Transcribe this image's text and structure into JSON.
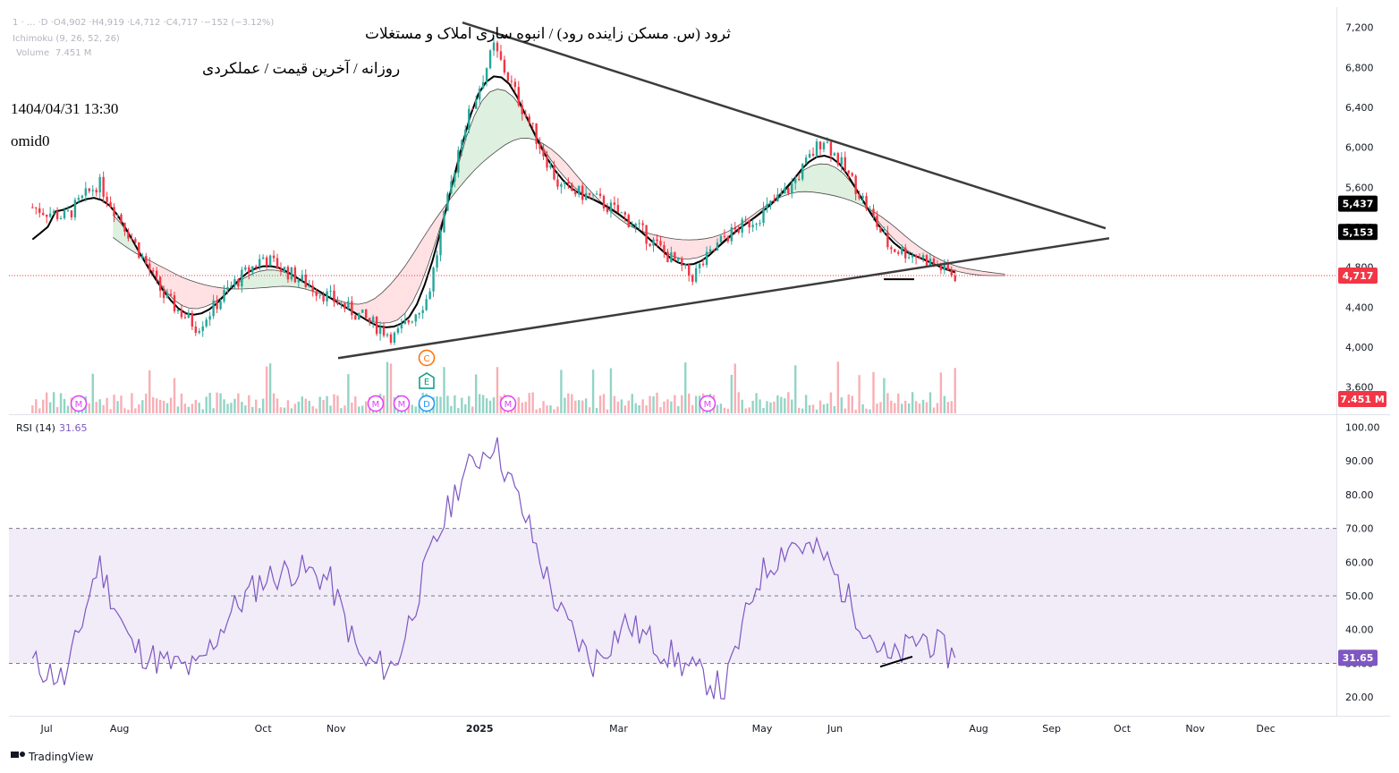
{
  "header": {
    "ohlc_line": "1 · ... ·D ·O4,902 ·H4,919 ·L4,712 ·C4,717 ·−152 (−3.12%)",
    "ichimoku_label": "Ichimoku (9, 26, 52, 26)",
    "volume_label": "Volume",
    "volume_value": "7.451 M",
    "title_lines": [
      "ثرود (س. مسکن زاینده رود) / انبوه سازی املاک و مستغلات",
      "روزانه / آخرین قیمت / عملکردی",
      "1404/04/31 13:30",
      "omid0"
    ]
  },
  "price_badges": [
    {
      "label": "5,437",
      "value": 5437,
      "color": "#000000"
    },
    {
      "label": "5,153",
      "value": 5153,
      "color": "#000000"
    },
    {
      "label": "4,717",
      "value": 4717,
      "color": "#f23645"
    }
  ],
  "volume_badge": {
    "label": "7.451 M",
    "color": "#f23645"
  },
  "rsi": {
    "label": "RSI (14)",
    "value": "31.65",
    "color": "#7e57c2"
  },
  "x_axis": {
    "ticks": [
      "Jul",
      "Aug",
      "Oct",
      "Nov",
      "2025",
      "Mar",
      "May",
      "Jun",
      "Aug",
      "Sep",
      "Oct",
      "Nov",
      "Dec"
    ]
  },
  "footer": {
    "brand": "TradingView"
  },
  "events": [
    {
      "letter": "M",
      "color": "#e040fb"
    },
    {
      "letter": "M",
      "color": "#e040fb"
    },
    {
      "letter": "M",
      "color": "#e040fb"
    },
    {
      "letter": "D",
      "color": "#2196f3"
    },
    {
      "letter": "E",
      "color": "#089981"
    },
    {
      "letter": "C",
      "color": "#ff6d00"
    },
    {
      "letter": "M",
      "color": "#e040fb"
    },
    {
      "letter": "M",
      "color": "#e040fb"
    }
  ],
  "colors": {
    "up": "#26a69a",
    "down": "#f23645",
    "cloud_bull": "#c8e6c9",
    "cloud_bear": "#ffcdd2",
    "rsi_band": "#ede7f6",
    "rsi_line": "#7e57c2"
  },
  "chart_data": [
    {
      "type": "candlestick",
      "title": "ثرود (س. مسکن زاینده رود) / انبوه سازی املاک و مستغلات",
      "x": [
        "2024-06-25",
        "2024-07-09",
        "2024-07-23",
        "2024-08-06",
        "2024-08-20",
        "2024-09-03",
        "2024-09-17",
        "2024-10-01",
        "2024-10-15",
        "2024-10-29",
        "2024-11-12",
        "2024-11-26",
        "2024-12-10",
        "2024-12-24",
        "2025-01-07",
        "2025-01-21",
        "2025-02-04",
        "2025-02-18",
        "2025-03-04",
        "2025-03-18",
        "2025-04-01",
        "2025-04-15",
        "2025-04-29",
        "2025-05-13",
        "2025-05-27",
        "2025-06-10",
        "2025-06-24",
        "2025-07-08",
        "2025-07-22"
      ],
      "close": [
        5400,
        5300,
        5650,
        5100,
        4500,
        4200,
        4600,
        4900,
        4700,
        4500,
        4300,
        4100,
        4500,
        6100,
        7000,
        6300,
        5600,
        5500,
        5300,
        5000,
        4700,
        5100,
        5300,
        5600,
        6100,
        5600,
        5000,
        4900,
        4717
      ],
      "yticks": [
        3600,
        4000,
        4400,
        4800,
        5200,
        5600,
        6000,
        6400,
        6800,
        7200
      ],
      "ylim": [
        3400,
        7350
      ],
      "ichimoku": {
        "conversion": 5437,
        "base": 5153
      },
      "last_close": 4717,
      "volume_last": "7.451 M",
      "trendlines": "symmetrical-triangle"
    },
    {
      "type": "line",
      "title": "RSI (14)",
      "x": [
        "2024-06-25",
        "2024-07-09",
        "2024-07-23",
        "2024-08-06",
        "2024-08-20",
        "2024-09-03",
        "2024-09-17",
        "2024-10-01",
        "2024-10-15",
        "2024-10-29",
        "2024-11-12",
        "2024-11-26",
        "2024-12-10",
        "2024-12-24",
        "2025-01-07",
        "2025-01-21",
        "2025-02-04",
        "2025-02-18",
        "2025-03-04",
        "2025-03-18",
        "2025-04-01",
        "2025-04-15",
        "2025-04-29",
        "2025-05-13",
        "2025-05-27",
        "2025-06-10",
        "2025-06-24",
        "2025-07-08",
        "2025-07-22"
      ],
      "values": [
        30,
        25,
        60,
        35,
        30,
        28,
        45,
        55,
        58,
        55,
        30,
        29,
        60,
        85,
        96,
        72,
        45,
        30,
        42,
        35,
        28,
        22,
        55,
        66,
        62,
        45,
        30,
        38,
        31.65
      ],
      "yticks": [
        20,
        30,
        40,
        50,
        60,
        70,
        80,
        90,
        100
      ],
      "ylim": [
        15,
        102
      ],
      "band": [
        30,
        70
      ],
      "midline": 50
    }
  ]
}
